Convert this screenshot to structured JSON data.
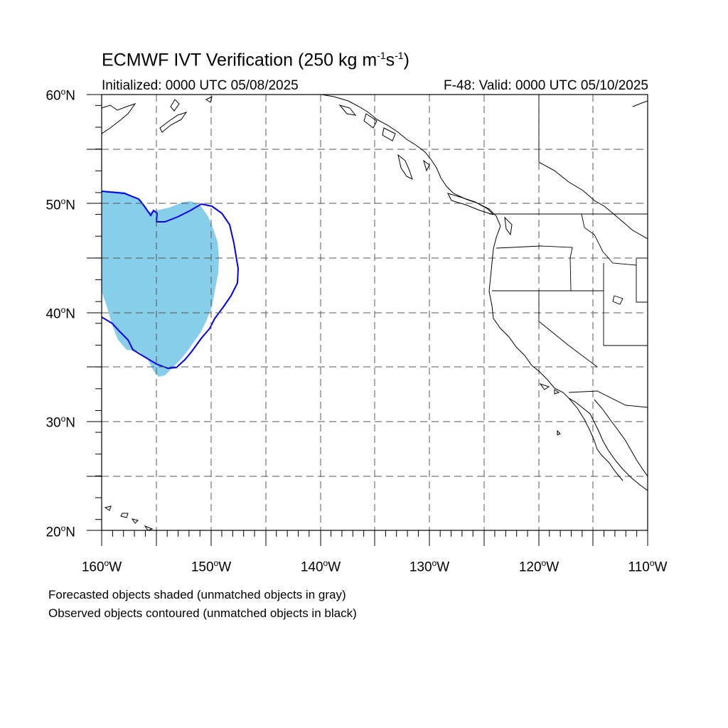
{
  "title": {
    "prefix": "ECMWF IVT Verification (250 kg m",
    "sup1": "-1",
    "mid": "s",
    "sup2": "-1",
    "suffix": ")"
  },
  "subtitle": {
    "initialized": "Initialized: 0000 UTC 05/08/2025",
    "valid": "F-48: Valid: 0000 UTC 05/10/2025"
  },
  "axes": {
    "lat_labels": [
      {
        "num": "60",
        "hemi": "N"
      },
      {
        "num": "50",
        "hemi": "N"
      },
      {
        "num": "40",
        "hemi": "N"
      },
      {
        "num": "30",
        "hemi": "N"
      },
      {
        "num": "20",
        "hemi": "N"
      }
    ],
    "lon_labels": [
      {
        "num": "160",
        "hemi": "W"
      },
      {
        "num": "150",
        "hemi": "W"
      },
      {
        "num": "140",
        "hemi": "W"
      },
      {
        "num": "130",
        "hemi": "W"
      },
      {
        "num": "120",
        "hemi": "W"
      },
      {
        "num": "110",
        "hemi": "W"
      }
    ],
    "lat_range": [
      20,
      60
    ],
    "lon_range": [
      -160,
      -110
    ],
    "grid": "dashed every 5 degrees"
  },
  "legend_notes": [
    "Forecasted objects shaded (unmatched objects in gray)",
    "Observed objects contoured (unmatched objects in black)"
  ],
  "colors": {
    "forecast_shade": "#87ceeb",
    "observed_contour": "#0000ee",
    "coastline": "#000000",
    "grid": "#555555"
  }
}
